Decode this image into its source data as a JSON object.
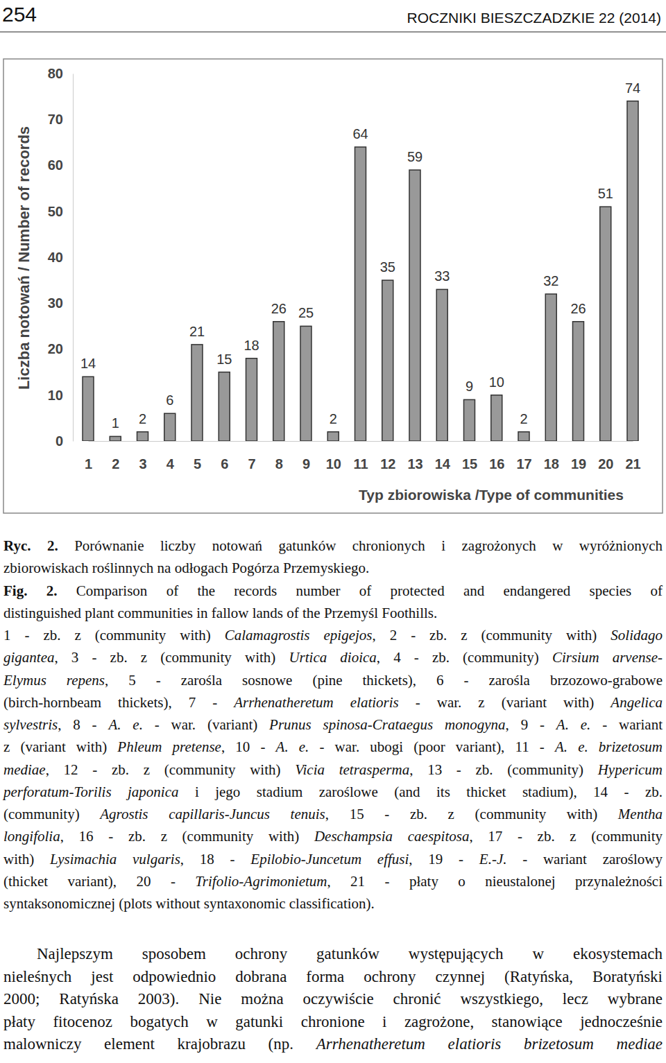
{
  "header": {
    "page": "254",
    "journal": "ROCZNIKI BIESZCZADZKIE 22 (2014)"
  },
  "chart_data": {
    "type": "bar",
    "categories": [
      "1",
      "2",
      "3",
      "4",
      "5",
      "6",
      "7",
      "8",
      "9",
      "10",
      "11",
      "12",
      "13",
      "14",
      "15",
      "16",
      "17",
      "18",
      "19",
      "20",
      "21"
    ],
    "values": [
      14,
      1,
      2,
      6,
      21,
      15,
      18,
      26,
      25,
      2,
      64,
      35,
      59,
      33,
      9,
      10,
      2,
      32,
      26,
      51,
      74
    ],
    "color": "#999999",
    "ylim": [
      0,
      80
    ],
    "yticks": [
      0,
      10,
      20,
      30,
      40,
      50,
      60,
      70,
      80
    ],
    "y_label": "Liczba notowań / Number of records",
    "x_label": "Typ zbiorowiska /Type of communities",
    "data_labels": true
  },
  "caption": [
    [
      [
        {
          "b": "Ryc. 2."
        },
        " Porównanie liczby notowań gatunków chronionych i zagrożonych w wyróżnionych"
      ],
      [
        "zbiorowiskach roślinnych na odłogach Pogórza Przemyskiego."
      ]
    ],
    [
      [
        {
          "b": "Fig. 2."
        },
        " Comparison of the records number of protected and endangered species of"
      ],
      [
        "distinguished plant communities in fallow lands of the Przemyśl Foothills."
      ]
    ],
    [
      [
        "1 - zb. z (community with) ",
        {
          "i": "Calamagrostis epigejos"
        },
        ", 2 - zb. z (community with) ",
        {
          "i": "Solidago"
        }
      ],
      [
        {
          "i": "gigantea"
        },
        ", 3 - zb. z (community with) ",
        {
          "i": "Urtica dioica"
        },
        ", 4 - zb. (community) ",
        {
          "i": "Cirsium arvense-"
        }
      ],
      [
        {
          "i": "Elymus repens"
        },
        ", 5 - zarośla sosnowe (pine thickets), 6 - zarośla brzozowo-grabowe"
      ],
      [
        "(birch-hornbeam thickets), 7 - ",
        {
          "i": "Arrhenatheretum elatioris"
        },
        " - war. z (variant with) ",
        {
          "i": "Angelica"
        }
      ],
      [
        {
          "i": "sylvestris"
        },
        ", 8 - ",
        {
          "i": "A. e."
        },
        " - war. (variant) ",
        {
          "i": "Prunus spinosa-Crataegus monogyna"
        },
        ", 9 - ",
        {
          "i": "A. e."
        },
        " - wariant"
      ],
      [
        "z (variant with) ",
        {
          "i": "Phleum pretense"
        },
        ", 10 - ",
        {
          "i": "A. e."
        },
        " - war. ubogi (poor variant), 11 - ",
        {
          "i": "A. e. brizetosum"
        }
      ],
      [
        {
          "i": "mediae"
        },
        ", 12 - zb. z (community with) ",
        {
          "i": "Vicia tetrasperma"
        },
        ", 13 - zb. (community) ",
        {
          "i": "Hypericum"
        }
      ],
      [
        {
          "i": "perforatum-Torilis japonica"
        },
        " i jego stadium zaroślowe (and its thicket stadium), 14 - zb."
      ],
      [
        "(community) ",
        {
          "i": "Agrostis capillaris-Juncus tenuis"
        },
        ", 15 - zb. z (community with) ",
        {
          "i": "Mentha"
        }
      ],
      [
        {
          "i": "longifolia"
        },
        ", 16 - zb. z (community with) ",
        {
          "i": "Deschampsia caespitosa"
        },
        ", 17 - zb. z (community"
      ],
      [
        "with) ",
        {
          "i": "Lysimachia vulgaris"
        },
        ", 18 - ",
        {
          "i": "Epilobio-Juncetum effusi"
        },
        ", 19 - ",
        {
          "i": "E.-J."
        },
        " - wariant zaroślowy"
      ],
      [
        "(thicket variant), 20 - ",
        {
          "i": "Trifolio-Agrimonietum"
        },
        ", 21 - płaty o nieustalonej przynależności"
      ],
      [
        "syntaksonomicznej (plots without syntaxonomic classification)."
      ]
    ]
  ],
  "body": [
    [
      "Najlepszym sposobem ochrony gatunków występujących w ekosystemach"
    ],
    [
      "nieleśnych jest odpowiednio dobrana forma ochrony czynnej (Ratyńska, Boratyński"
    ],
    [
      "2000; Ratyńska 2003). Nie można oczywiście chronić wszystkiego, lecz wybrane"
    ],
    [
      "płaty fitocenoz bogatych w gatunki chronione i zagrożone, stanowiące jednocześnie"
    ],
    [
      "malowniczy element krajobrazu (np. ",
      {
        "i": "Arrhenatheretum elatioris brizetosum mediae"
      }
    ]
  ]
}
